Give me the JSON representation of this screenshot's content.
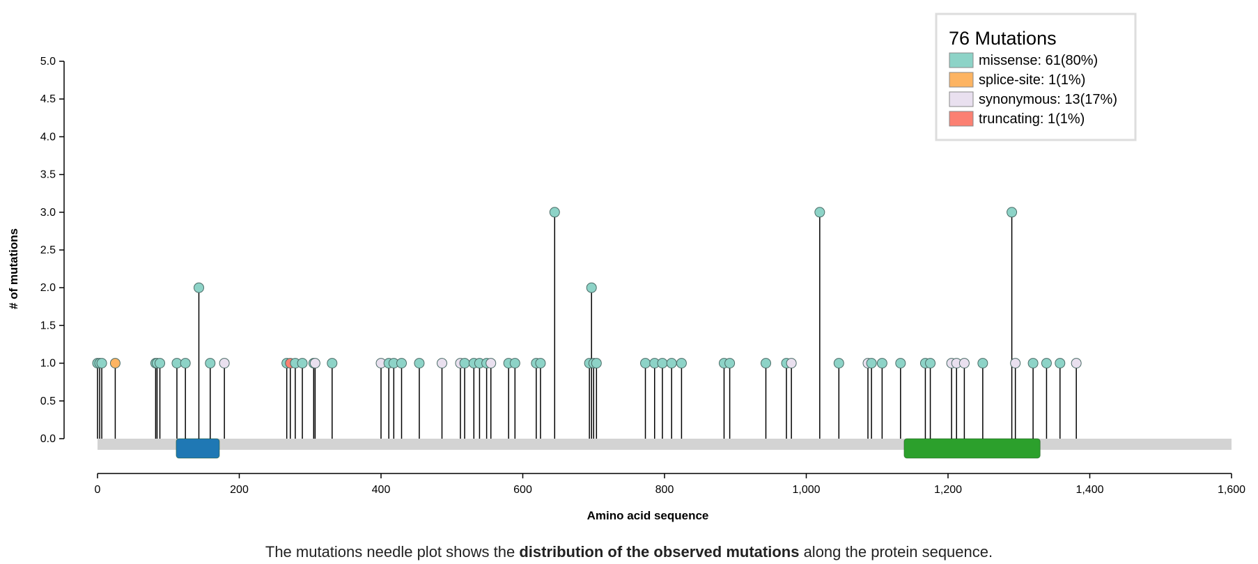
{
  "chart_data": {
    "type": "needle",
    "xlabel": "Amino acid sequence",
    "ylabel": "# of mutations",
    "xlim": [
      0,
      1600
    ],
    "ylim": [
      0,
      5
    ],
    "x_ticks": [
      0,
      200,
      400,
      600,
      800,
      1000,
      1200,
      1400,
      1600
    ],
    "x_tick_labels": [
      "0",
      "200",
      "400",
      "600",
      "800",
      "1,000",
      "1,200",
      "1,400",
      "1,600"
    ],
    "y_ticks": [
      0,
      0.5,
      1,
      1.5,
      2,
      2.5,
      3,
      3.5,
      4,
      4.5,
      5
    ],
    "y_tick_labels": [
      "0.0",
      "0.5",
      "1.0",
      "1.5",
      "2.0",
      "2.5",
      "3.0",
      "3.5",
      "4.0",
      "4.5",
      "5.0"
    ],
    "legend": {
      "title": "76 Mutations",
      "entries": [
        {
          "label": "missense: 61(80%)",
          "color": "#8dd3c7"
        },
        {
          "label": "splice-site: 1(1%)",
          "color": "#fdb462"
        },
        {
          "label": "synonymous: 13(17%)",
          "color": "#e9e0ef"
        },
        {
          "label": "truncating: 1(1%)",
          "color": "#fb8072"
        }
      ]
    },
    "colors": {
      "missense": "#8dd3c7",
      "splice-site": "#fdb462",
      "synonymous": "#e9e0ef",
      "truncating": "#fb8072",
      "protein_bar": "#d3d3d3"
    },
    "domains": [
      {
        "start": 111,
        "end": 172,
        "color": "#1f78b4"
      },
      {
        "start": 1138,
        "end": 1330,
        "color": "#2ca02c"
      }
    ],
    "mutations": [
      {
        "pos": 0,
        "count": 1,
        "type": "missense"
      },
      {
        "pos": 3,
        "count": 1,
        "type": "missense"
      },
      {
        "pos": 6,
        "count": 1,
        "type": "missense"
      },
      {
        "pos": 25,
        "count": 1,
        "type": "splice-site"
      },
      {
        "pos": 82,
        "count": 1,
        "type": "missense"
      },
      {
        "pos": 84,
        "count": 1,
        "type": "missense"
      },
      {
        "pos": 88,
        "count": 1,
        "type": "missense"
      },
      {
        "pos": 112,
        "count": 1,
        "type": "missense"
      },
      {
        "pos": 124,
        "count": 1,
        "type": "missense"
      },
      {
        "pos": 143,
        "count": 2,
        "type": "missense"
      },
      {
        "pos": 159,
        "count": 1,
        "type": "missense"
      },
      {
        "pos": 179,
        "count": 1,
        "type": "synonymous"
      },
      {
        "pos": 267,
        "count": 1,
        "type": "missense"
      },
      {
        "pos": 272,
        "count": 1,
        "type": "truncating"
      },
      {
        "pos": 279,
        "count": 1,
        "type": "missense"
      },
      {
        "pos": 289,
        "count": 1,
        "type": "missense"
      },
      {
        "pos": 305,
        "count": 1,
        "type": "missense"
      },
      {
        "pos": 307,
        "count": 1,
        "type": "synonymous"
      },
      {
        "pos": 331,
        "count": 1,
        "type": "missense"
      },
      {
        "pos": 400,
        "count": 1,
        "type": "synonymous"
      },
      {
        "pos": 411,
        "count": 1,
        "type": "missense"
      },
      {
        "pos": 418,
        "count": 1,
        "type": "missense"
      },
      {
        "pos": 429,
        "count": 1,
        "type": "missense"
      },
      {
        "pos": 454,
        "count": 1,
        "type": "missense"
      },
      {
        "pos": 486,
        "count": 1,
        "type": "synonymous"
      },
      {
        "pos": 512,
        "count": 1,
        "type": "synonymous"
      },
      {
        "pos": 518,
        "count": 1,
        "type": "missense"
      },
      {
        "pos": 531,
        "count": 1,
        "type": "missense"
      },
      {
        "pos": 539,
        "count": 1,
        "type": "missense"
      },
      {
        "pos": 549,
        "count": 1,
        "type": "missense"
      },
      {
        "pos": 555,
        "count": 1,
        "type": "synonymous"
      },
      {
        "pos": 580,
        "count": 1,
        "type": "missense"
      },
      {
        "pos": 589,
        "count": 1,
        "type": "missense"
      },
      {
        "pos": 619,
        "count": 1,
        "type": "missense"
      },
      {
        "pos": 625,
        "count": 1,
        "type": "missense"
      },
      {
        "pos": 645,
        "count": 3,
        "type": "missense"
      },
      {
        "pos": 694,
        "count": 1,
        "type": "missense"
      },
      {
        "pos": 697,
        "count": 2,
        "type": "missense"
      },
      {
        "pos": 700,
        "count": 1,
        "type": "missense"
      },
      {
        "pos": 704,
        "count": 1,
        "type": "missense"
      },
      {
        "pos": 773,
        "count": 1,
        "type": "missense"
      },
      {
        "pos": 786,
        "count": 1,
        "type": "missense"
      },
      {
        "pos": 797,
        "count": 1,
        "type": "missense"
      },
      {
        "pos": 810,
        "count": 1,
        "type": "missense"
      },
      {
        "pos": 824,
        "count": 1,
        "type": "missense"
      },
      {
        "pos": 884,
        "count": 1,
        "type": "missense"
      },
      {
        "pos": 892,
        "count": 1,
        "type": "missense"
      },
      {
        "pos": 943,
        "count": 1,
        "type": "missense"
      },
      {
        "pos": 972,
        "count": 1,
        "type": "missense"
      },
      {
        "pos": 979,
        "count": 1,
        "type": "synonymous"
      },
      {
        "pos": 1019,
        "count": 3,
        "type": "missense"
      },
      {
        "pos": 1046,
        "count": 1,
        "type": "missense"
      },
      {
        "pos": 1087,
        "count": 1,
        "type": "synonymous"
      },
      {
        "pos": 1092,
        "count": 1,
        "type": "missense"
      },
      {
        "pos": 1107,
        "count": 1,
        "type": "missense"
      },
      {
        "pos": 1133,
        "count": 1,
        "type": "missense"
      },
      {
        "pos": 1168,
        "count": 1,
        "type": "missense"
      },
      {
        "pos": 1175,
        "count": 1,
        "type": "missense"
      },
      {
        "pos": 1205,
        "count": 1,
        "type": "synonymous"
      },
      {
        "pos": 1212,
        "count": 1,
        "type": "synonymous"
      },
      {
        "pos": 1223,
        "count": 1,
        "type": "synonymous"
      },
      {
        "pos": 1249,
        "count": 1,
        "type": "missense"
      },
      {
        "pos": 1290,
        "count": 3,
        "type": "missense"
      },
      {
        "pos": 1295,
        "count": 1,
        "type": "synonymous"
      },
      {
        "pos": 1320,
        "count": 1,
        "type": "missense"
      },
      {
        "pos": 1339,
        "count": 1,
        "type": "missense"
      },
      {
        "pos": 1358,
        "count": 1,
        "type": "missense"
      },
      {
        "pos": 1381,
        "count": 1,
        "type": "synonymous"
      }
    ]
  },
  "caption": {
    "before": "The mutations needle plot shows the ",
    "bold": "distribution of the observed mutations",
    "after": " along the protein sequence."
  }
}
